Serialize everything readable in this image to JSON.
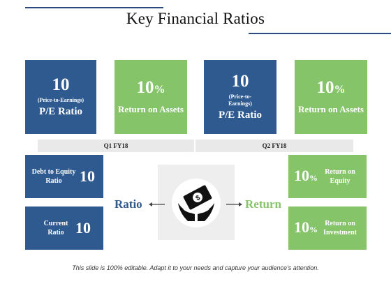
{
  "title": "Key Financial Ratios",
  "colors": {
    "navy": "#2e5a8f",
    "green": "#86c46a",
    "rule": "#2e4a7a",
    "bar": "#e9e9e9"
  },
  "top_tiles": [
    {
      "value": "10",
      "note": "(Price-to-Earnings)",
      "label": "P/E Ratio"
    },
    {
      "value": "10",
      "unit": "%",
      "label": "Return on Assets"
    },
    {
      "value": "10",
      "note": "(Price-to-Earnings)",
      "label": "P/E Ratio"
    },
    {
      "value": "10",
      "unit": "%",
      "label": "Return on Assets"
    }
  ],
  "periods": [
    "Q1 FY18",
    "Q2 FY18"
  ],
  "left_tiles": [
    {
      "label": "Debt to Equity Ratio",
      "value": "10"
    },
    {
      "label": "Current Ratio",
      "value": "10"
    }
  ],
  "right_tiles": [
    {
      "value": "10",
      "unit": "%",
      "label": "Return on Equity"
    },
    {
      "value": "10",
      "unit": "%",
      "label": "Return on Investment"
    }
  ],
  "center": {
    "left_word": "Ratio",
    "right_word": "Return",
    "icon": "money-in-hands-icon"
  },
  "footer": "This slide is 100% editable. Adapt it to your needs and capture your audience's attention."
}
